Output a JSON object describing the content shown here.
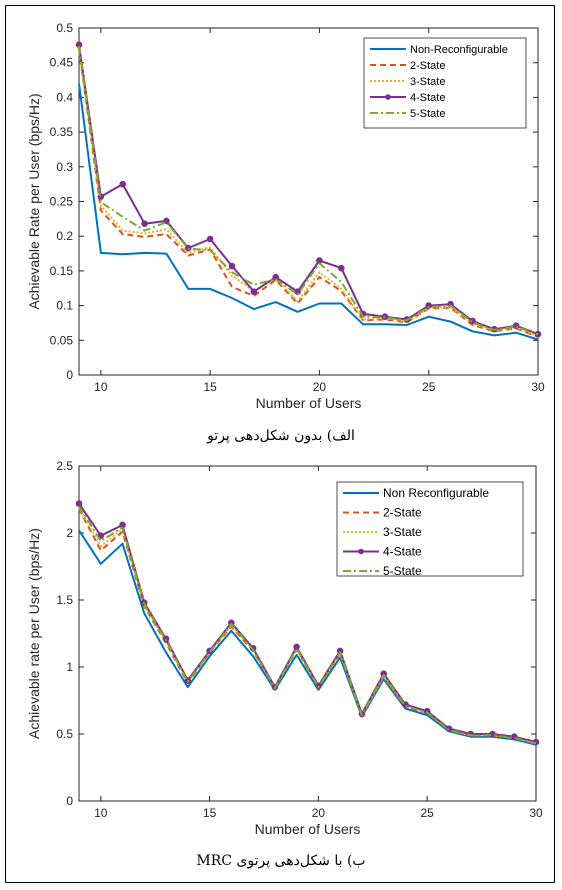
{
  "captions": {
    "top": "الف) بدون شکل‌دهی پرتو",
    "bottom": "ب) با شکل‌دهی پرتوی MRC"
  },
  "chart_data": [
    {
      "type": "line",
      "xlabel": "Number of Users",
      "ylabel": "Achievable Rate per User (bps/Hz)",
      "xlim": [
        9,
        30
      ],
      "ylim": [
        0,
        0.5
      ],
      "xticks": [
        "10",
        "15",
        "20",
        "25",
        "30"
      ],
      "yticks": [
        "0",
        "0.05",
        "0.1",
        "0.15",
        "0.2",
        "0.25",
        "0.3",
        "0.35",
        "0.4",
        "0.45",
        "0.5"
      ],
      "legend_position": "top-right",
      "grid": false,
      "x": [
        9,
        10,
        11,
        12,
        13,
        14,
        15,
        16,
        17,
        18,
        19,
        20,
        21,
        22,
        23,
        24,
        25,
        26,
        27,
        28,
        29,
        30
      ],
      "series": [
        {
          "name": "Non-Reconfigurable",
          "color": "#0072BD",
          "dash": "",
          "marker": false,
          "values": [
            0.42,
            0.176,
            0.174,
            0.176,
            0.175,
            0.124,
            0.124,
            0.111,
            0.095,
            0.105,
            0.091,
            0.103,
            0.103,
            0.073,
            0.073,
            0.072,
            0.084,
            0.077,
            0.063,
            0.057,
            0.061,
            0.051
          ]
        },
        {
          "name": "2-State",
          "color": "#D95319",
          "dash": "6,4",
          "marker": false,
          "values": [
            0.47,
            0.237,
            0.203,
            0.199,
            0.203,
            0.172,
            0.181,
            0.127,
            0.114,
            0.137,
            0.103,
            0.141,
            0.121,
            0.079,
            0.08,
            0.076,
            0.096,
            0.097,
            0.072,
            0.063,
            0.067,
            0.055
          ]
        },
        {
          "name": "3-State",
          "color": "#EDB120",
          "dash": "2,2",
          "marker": false,
          "values": [
            0.468,
            0.244,
            0.208,
            0.204,
            0.21,
            0.176,
            0.184,
            0.143,
            0.121,
            0.14,
            0.106,
            0.148,
            0.124,
            0.08,
            0.082,
            0.077,
            0.097,
            0.098,
            0.074,
            0.064,
            0.068,
            0.056
          ]
        },
        {
          "name": "4-State",
          "color": "#7E2F8E",
          "dash": "",
          "marker": true,
          "values": [
            0.476,
            0.257,
            0.275,
            0.218,
            0.222,
            0.183,
            0.196,
            0.157,
            0.12,
            0.141,
            0.12,
            0.165,
            0.154,
            0.088,
            0.084,
            0.08,
            0.1,
            0.102,
            0.078,
            0.066,
            0.071,
            0.059
          ]
        },
        {
          "name": "5-State",
          "color": "#77AC30",
          "dash": "8,3,2,3",
          "marker": false,
          "values": [
            0.474,
            0.249,
            0.228,
            0.208,
            0.22,
            0.182,
            0.18,
            0.148,
            0.13,
            0.138,
            0.116,
            0.161,
            0.134,
            0.084,
            0.083,
            0.079,
            0.098,
            0.1,
            0.076,
            0.065,
            0.07,
            0.058
          ]
        }
      ]
    },
    {
      "type": "line",
      "xlabel": "Number of Users",
      "ylabel": "Achievable rate per User (bps/Hz)",
      "xlim": [
        9,
        30
      ],
      "ylim": [
        0,
        2.5
      ],
      "xticks": [
        "10",
        "15",
        "20",
        "25",
        "30"
      ],
      "yticks": [
        "0",
        "0.5",
        "1",
        "1.5",
        "2",
        "2.5"
      ],
      "legend_position": "top-right",
      "grid": false,
      "x": [
        9,
        10,
        11,
        12,
        13,
        14,
        15,
        16,
        17,
        18,
        19,
        20,
        21,
        22,
        23,
        24,
        25,
        26,
        27,
        28,
        29,
        30
      ],
      "series": [
        {
          "name": "Non Reconfigurable",
          "color": "#0072BD",
          "dash": "",
          "marker": false,
          "values": [
            2.02,
            1.77,
            1.92,
            1.4,
            1.11,
            0.85,
            1.08,
            1.27,
            1.08,
            0.83,
            1.09,
            0.83,
            1.07,
            0.63,
            0.91,
            0.69,
            0.64,
            0.52,
            0.48,
            0.48,
            0.46,
            0.42
          ]
        },
        {
          "name": "2-State",
          "color": "#D95319",
          "dash": "6,4",
          "marker": false,
          "values": [
            2.18,
            1.87,
            2.01,
            1.45,
            1.18,
            0.88,
            1.11,
            1.3,
            1.12,
            0.84,
            1.13,
            0.85,
            1.1,
            0.64,
            0.93,
            0.7,
            0.66,
            0.53,
            0.49,
            0.49,
            0.47,
            0.43
          ]
        },
        {
          "name": "3-State",
          "color": "#EDB120",
          "dash": "2,2",
          "marker": false,
          "values": [
            2.19,
            1.9,
            2.03,
            1.46,
            1.19,
            0.89,
            1.11,
            1.31,
            1.13,
            0.84,
            1.13,
            0.85,
            1.1,
            0.64,
            0.93,
            0.71,
            0.66,
            0.53,
            0.49,
            0.49,
            0.47,
            0.43
          ]
        },
        {
          "name": "4-State",
          "color": "#7E2F8E",
          "dash": "",
          "marker": true,
          "values": [
            2.22,
            1.98,
            2.06,
            1.48,
            1.21,
            0.9,
            1.12,
            1.33,
            1.14,
            0.85,
            1.15,
            0.86,
            1.12,
            0.65,
            0.95,
            0.72,
            0.67,
            0.54,
            0.5,
            0.5,
            0.48,
            0.44
          ]
        },
        {
          "name": "5-State",
          "color": "#77AC30",
          "dash": "8,3,2,3",
          "marker": false,
          "values": [
            2.2,
            1.94,
            2.04,
            1.47,
            1.2,
            0.89,
            1.11,
            1.32,
            1.13,
            0.84,
            1.14,
            0.85,
            1.11,
            0.64,
            0.94,
            0.71,
            0.66,
            0.53,
            0.49,
            0.49,
            0.47,
            0.43
          ]
        }
      ]
    }
  ]
}
